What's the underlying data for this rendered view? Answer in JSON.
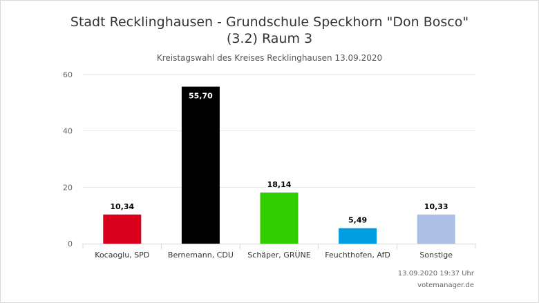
{
  "header": {
    "title_line1": "Stadt Recklinghausen - Grundschule Speckhorn \"Don Bosco\"",
    "title_line2": "(3.2) Raum 3",
    "subtitle": "Kreistagswahl des Kreises Recklinghausen 13.09.2020"
  },
  "footer": {
    "timestamp": "13.09.2020 19:37 Uhr",
    "source": "votemanager.de"
  },
  "chart_data": {
    "type": "bar",
    "categories": [
      "Kocaoglu, SPD",
      "Bernemann, CDU",
      "Schäper, GRÜNE",
      "Feuchthofen, AfD",
      "Sonstige"
    ],
    "values": [
      10.34,
      55.7,
      18.14,
      5.49,
      10.33
    ],
    "value_labels": [
      "10,34",
      "55,70",
      "18,14",
      "5,49",
      "10,33"
    ],
    "colors": [
      "#d8001c",
      "#000000",
      "#32cd00",
      "#009de0",
      "#aebfe6"
    ],
    "ylim": [
      0,
      60
    ],
    "yticks": [
      0,
      20,
      40,
      60
    ],
    "grid": true,
    "legend": "none"
  }
}
